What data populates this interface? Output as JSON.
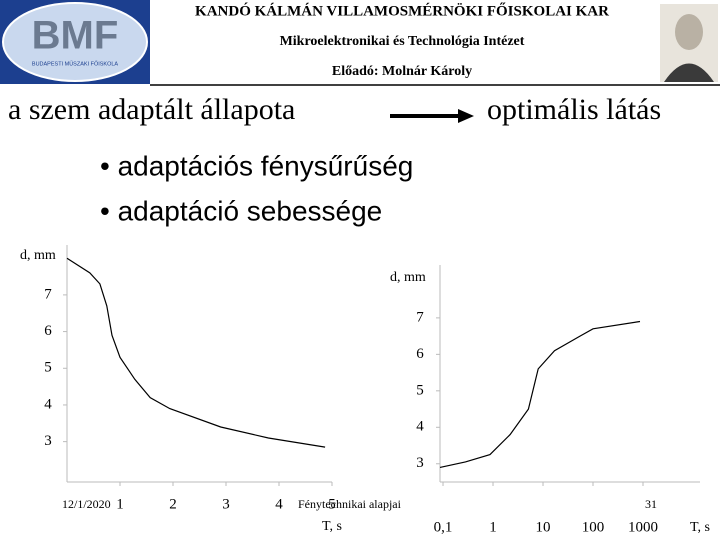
{
  "header": {
    "logo": "BMF",
    "logo_caption": "BUDAPESTI MŰSZAKI FŐISKOLA",
    "faculty": "KANDÓ KÁLMÁN VILLAMOSMÉRNÖKI FŐISKOLAI KAR",
    "institute": "Mikroelektronikai és Technológia Intézet",
    "lecturer": "Előadó: Molnár Károly"
  },
  "heading": {
    "left": "a szem adaptált állapota",
    "right": "optimális látás"
  },
  "bullets": [
    "• adaptációs fénysűrűség",
    "• adaptáció sebessége"
  ],
  "footer": {
    "date": "12/1/2020",
    "topic": "Fénytechnikai alapjai",
    "page": "31"
  },
  "chart_data": [
    {
      "type": "line",
      "y_label": "d, mm",
      "x_label": "T, s",
      "x": [
        0,
        0.43,
        0.62,
        0.75,
        0.85,
        1.0,
        1.28,
        1.57,
        1.94,
        2.9,
        3.8,
        4.87
      ],
      "values": [
        8.0,
        7.6,
        7.3,
        6.7,
        5.9,
        5.3,
        4.7,
        4.2,
        3.9,
        3.4,
        3.1,
        2.85
      ],
      "color": "#000000",
      "xlim": [
        0,
        5
      ],
      "ylim": [
        1.9,
        8.36
      ],
      "xticks": [
        1,
        2,
        3,
        4,
        5
      ],
      "yticks": [
        3,
        4,
        5,
        6,
        7
      ]
    },
    {
      "type": "line",
      "y_label": "d, mm",
      "x_label": "T, s",
      "log_x": true,
      "x": [
        0.087,
        0.28,
        0.87,
        2.2,
        5.1,
        8,
        17,
        55,
        100,
        870
      ],
      "values": [
        2.9,
        3.05,
        3.25,
        3.8,
        4.5,
        5.6,
        6.1,
        6.5,
        6.7,
        6.9
      ],
      "color": "#000000",
      "xlim": [
        0.087,
        13800
      ],
      "ylim": [
        2.5,
        8.45
      ],
      "xticks": [
        {
          "value": 0.1,
          "label": "0,1"
        },
        1,
        10,
        100,
        1000
      ],
      "yticks": [
        3,
        4,
        5,
        6,
        7
      ]
    }
  ]
}
